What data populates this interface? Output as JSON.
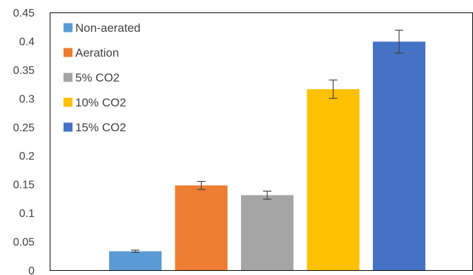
{
  "chart_data": {
    "type": "bar",
    "title": "",
    "xlabel": "",
    "ylabel": "",
    "ylim": [
      0,
      0.45
    ],
    "yticks": [
      "0",
      "0.05",
      "0.1",
      "0.15",
      "0.2",
      "0.25",
      "0.3",
      "0.35",
      "0.4",
      "0.45"
    ],
    "grid": false,
    "legend_position": "top-left",
    "series": [
      {
        "name": "Non-aerated",
        "value": 0.033,
        "error": 0.002,
        "color": "#5B9BD5"
      },
      {
        "name": "Aeration",
        "value": 0.148,
        "error": 0.007,
        "color": "#ED7D31"
      },
      {
        "name": "5% CO2",
        "value": 0.131,
        "error": 0.007,
        "color": "#A5A5A5"
      },
      {
        "name": "10% CO2",
        "value": 0.316,
        "error": 0.016,
        "color": "#FFC000"
      },
      {
        "name": "15% CO2",
        "value": 0.399,
        "error": 0.02,
        "color": "#4472C4"
      }
    ]
  }
}
